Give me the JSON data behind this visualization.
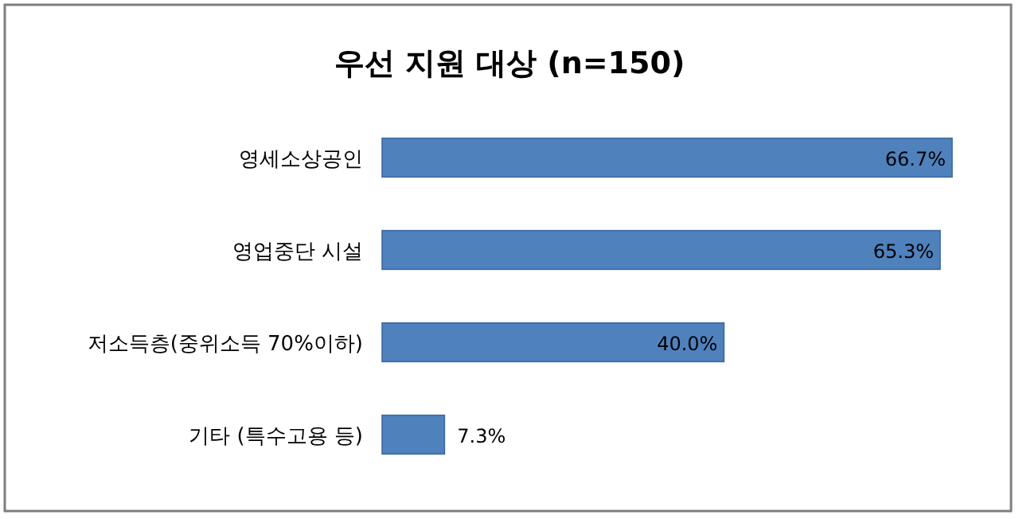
{
  "chart_data": {
    "type": "bar",
    "orientation": "horizontal",
    "title": "우선 지원 대상 (n=150)",
    "categories": [
      "영세소상공인",
      "영업중단 시설",
      "저소득층(중위소득 70%이하)",
      "기타 (특수고용 등)"
    ],
    "values": [
      66.7,
      65.3,
      40.0,
      7.3
    ],
    "value_labels": [
      "66.7%",
      "65.3%",
      "40.0%",
      "7.3%"
    ],
    "color": "#4f81bd"
  }
}
